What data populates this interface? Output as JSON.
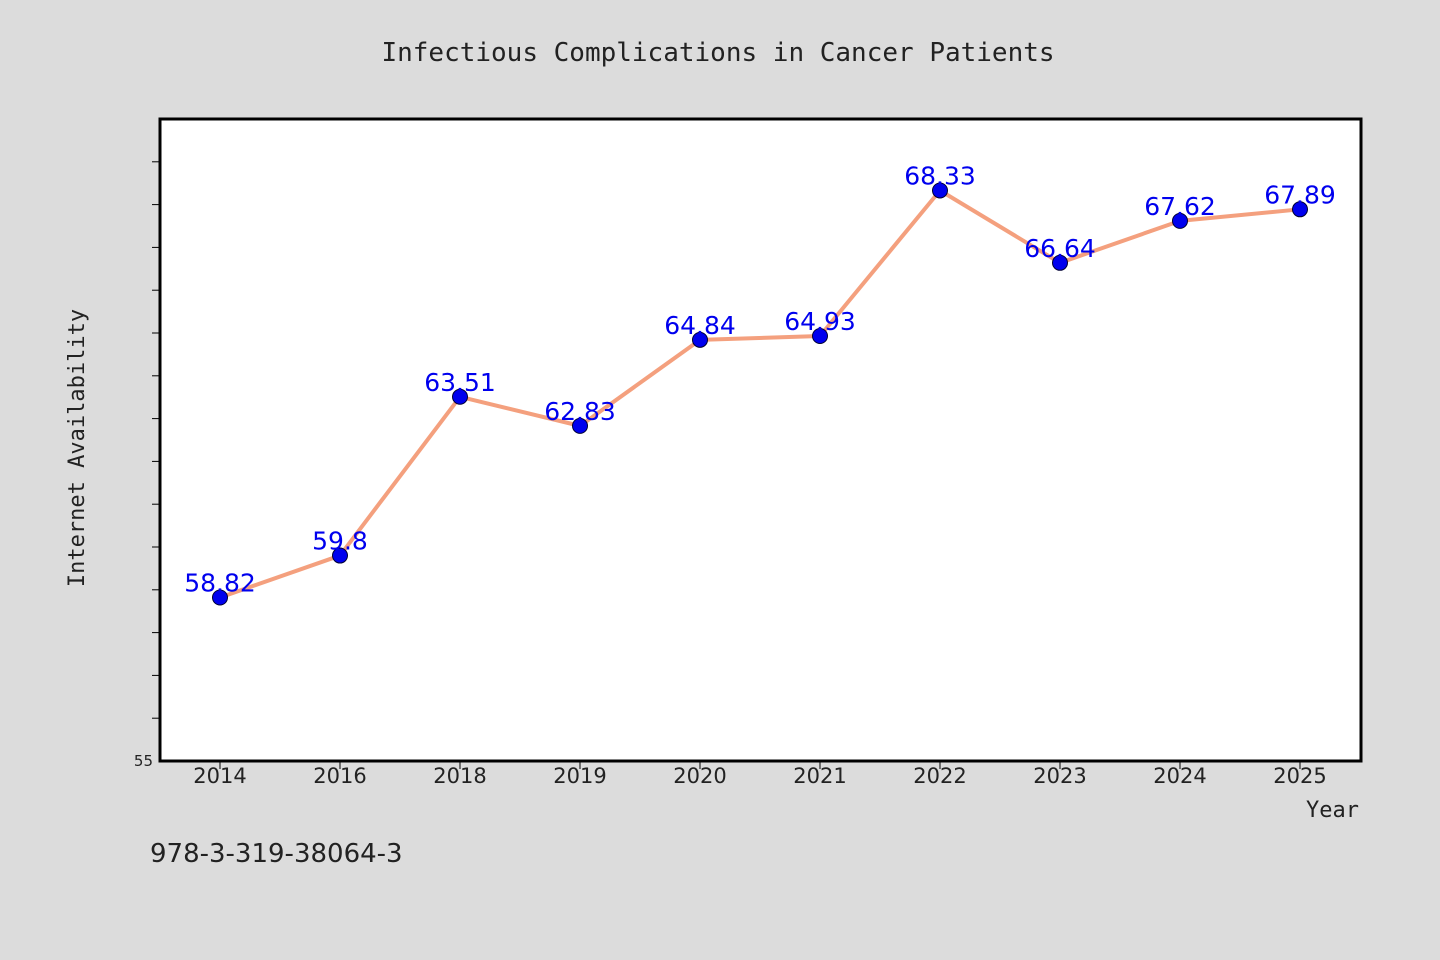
{
  "chart_data": {
    "type": "line",
    "title": "Infectious Complications in Cancer Patients",
    "xlabel": "Year",
    "ylabel": "Internet Availability",
    "categories": [
      "2014",
      "2016",
      "2018",
      "2019",
      "2020",
      "2021",
      "2022",
      "2023",
      "2024",
      "2025"
    ],
    "series": [
      {
        "values": [
          58.82,
          59.8,
          63.51,
          62.83,
          64.84,
          64.93,
          68.33,
          66.64,
          67.62,
          67.89
        ],
        "labels": [
          "58.82",
          "59.8",
          "63.51",
          "62.83",
          "64.84",
          "64.93",
          "68.33",
          "66.64",
          "67.62",
          "67.89"
        ],
        "line_color": "#f4a07e",
        "marker_color": "#0000ee"
      }
    ],
    "ylim": [
      55,
      70
    ],
    "y_tick_labels": [
      "55"
    ],
    "grid": false,
    "legend": "none"
  },
  "annotation": "978-3-319-38064-3",
  "colors": {
    "background": "#dcdcdc",
    "plot_background": "#ffffff",
    "label_color": "#0000ee"
  }
}
